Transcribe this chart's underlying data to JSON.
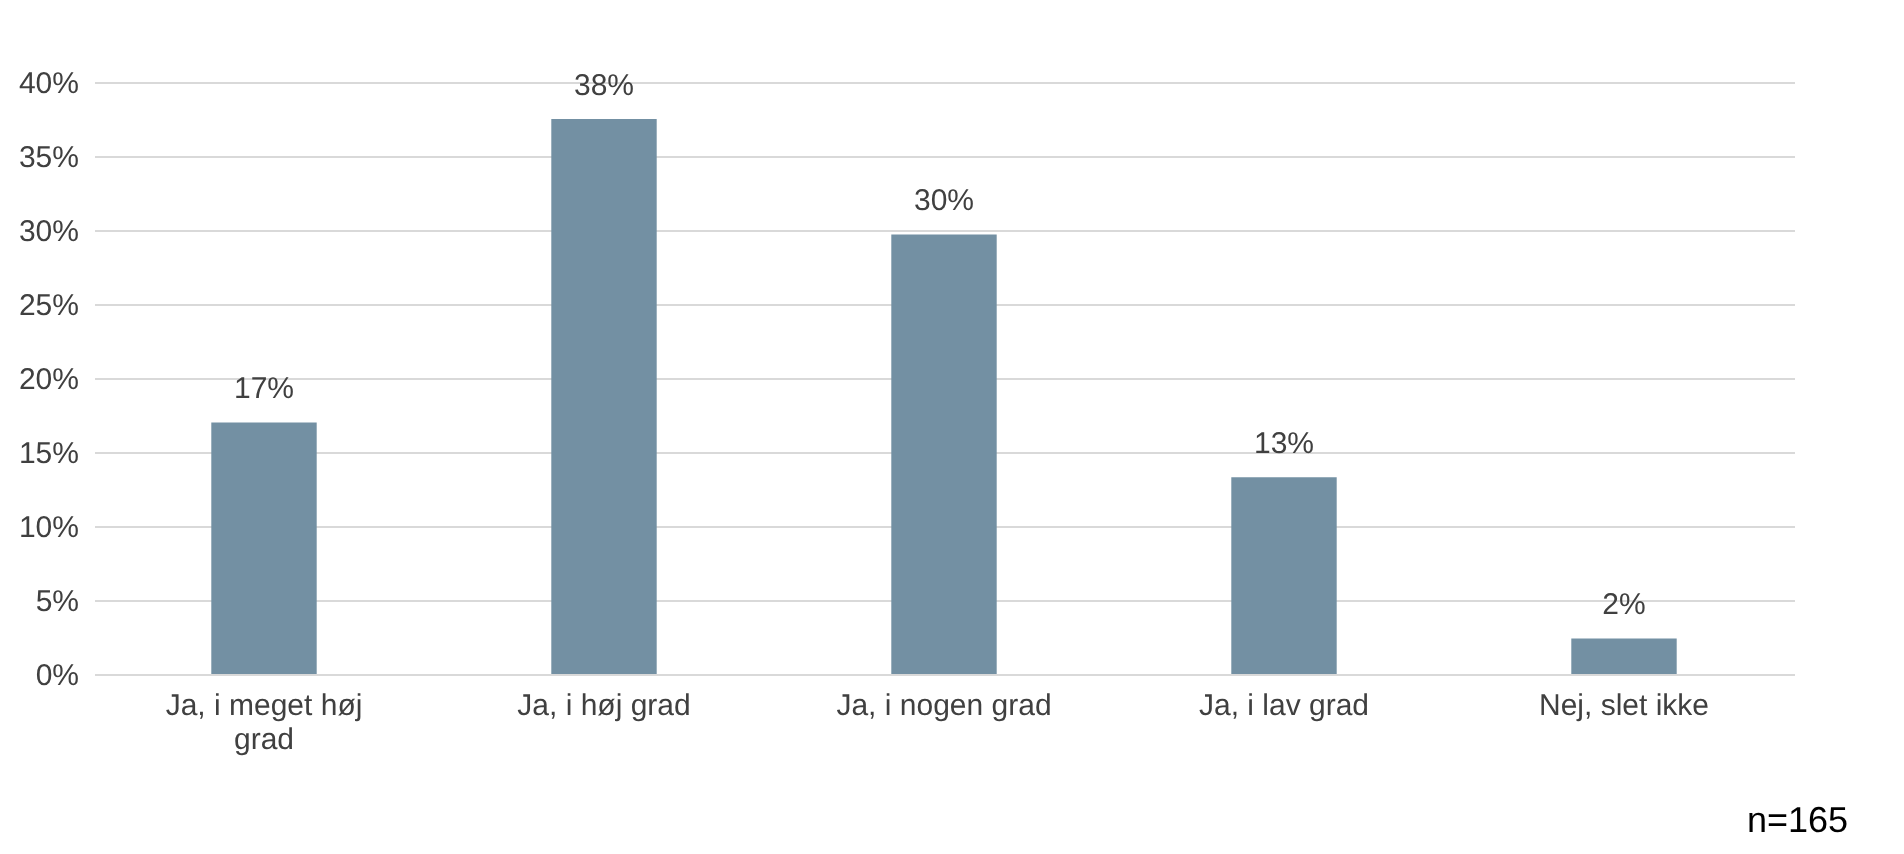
{
  "chart_data": {
    "type": "bar",
    "categories": [
      "Ja, i meget høj grad",
      "Ja, i høj grad",
      "Ja, i nogen grad",
      "Ja, i lav grad",
      "Nej, slet ikke"
    ],
    "values": [
      17,
      37.5,
      29.7,
      13.3,
      2.4
    ],
    "value_labels": [
      "17%",
      "38%",
      "30%",
      "13%",
      "2%"
    ],
    "color": "#7390a3",
    "ylim": [
      0,
      40
    ],
    "yticks": [
      {
        "value": 0,
        "label": "0%"
      },
      {
        "value": 5,
        "label": "5%"
      },
      {
        "value": 10,
        "label": "10%"
      },
      {
        "value": 15,
        "label": "15%"
      },
      {
        "value": 20,
        "label": "20%"
      },
      {
        "value": 25,
        "label": "25%"
      },
      {
        "value": 30,
        "label": "30%"
      },
      {
        "value": 35,
        "label": "35%"
      },
      {
        "value": 40,
        "label": "40%"
      }
    ],
    "grid": "y",
    "annotations": [
      "n=165"
    ]
  }
}
